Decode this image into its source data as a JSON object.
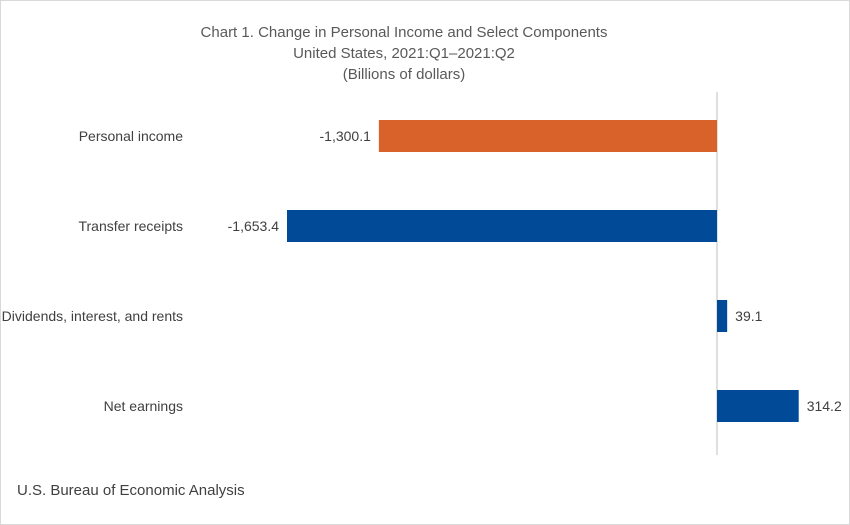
{
  "chart_data": {
    "type": "bar",
    "orientation": "horizontal",
    "title": "Chart 1. Change in Personal Income and Select Components",
    "subtitle": "United States, 2021:Q1–2021:Q2",
    "units": "(Billions of dollars)",
    "categories": [
      "Personal income",
      "Transfer receipts",
      "Dividends, interest, and rents",
      "Net earnings"
    ],
    "values": [
      -1300.1,
      -1653.4,
      39.1,
      314.2
    ],
    "value_labels": [
      "-1,300.1",
      "-1,653.4",
      "39.1",
      "314.2"
    ],
    "colors": [
      "#d9622b",
      "#004a98",
      "#004a98",
      "#004a98"
    ],
    "xlim": [
      -1653.4,
      500
    ],
    "grid": false,
    "legend": "none"
  },
  "source": "U.S. Bureau of Economic Analysis"
}
